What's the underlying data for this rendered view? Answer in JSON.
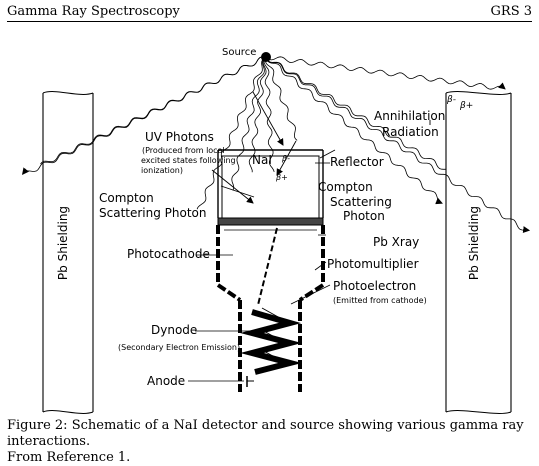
{
  "header": {
    "left": "Gamma Ray Spectroscopy",
    "right": "GRS 3"
  },
  "diagram": {
    "source": "Source",
    "annihilation": [
      "Annihilation",
      "Radiation"
    ],
    "beta_plus": "β+",
    "beta_minus": "β-",
    "uv_photons": "UV Photons",
    "uv_note": [
      "(Produced from local",
      "excited states following",
      "ionization)"
    ],
    "nai": "NaI",
    "reflector": "Reflector",
    "compton_left": [
      "Compton",
      "Scattering Photon"
    ],
    "compton_right": [
      "Compton",
      "Scattering",
      "Photon"
    ],
    "pb_xray": "Pb Xray",
    "photocathode": "Photocathode",
    "photomultiplier": "Photomultiplier",
    "photoelectron": "Photoelectron",
    "photoelectron_note": "(Emitted from cathode)",
    "dynode": "Dynode",
    "dynode_note": "(Secondary Electron Emission)",
    "anode": "Anode",
    "pb_shielding": "Pb Shielding"
  },
  "caption": [
    "Figure 2: Schematic of a NaI detector and source showing various gamma ray interactions.",
    "From Reference 1."
  ]
}
